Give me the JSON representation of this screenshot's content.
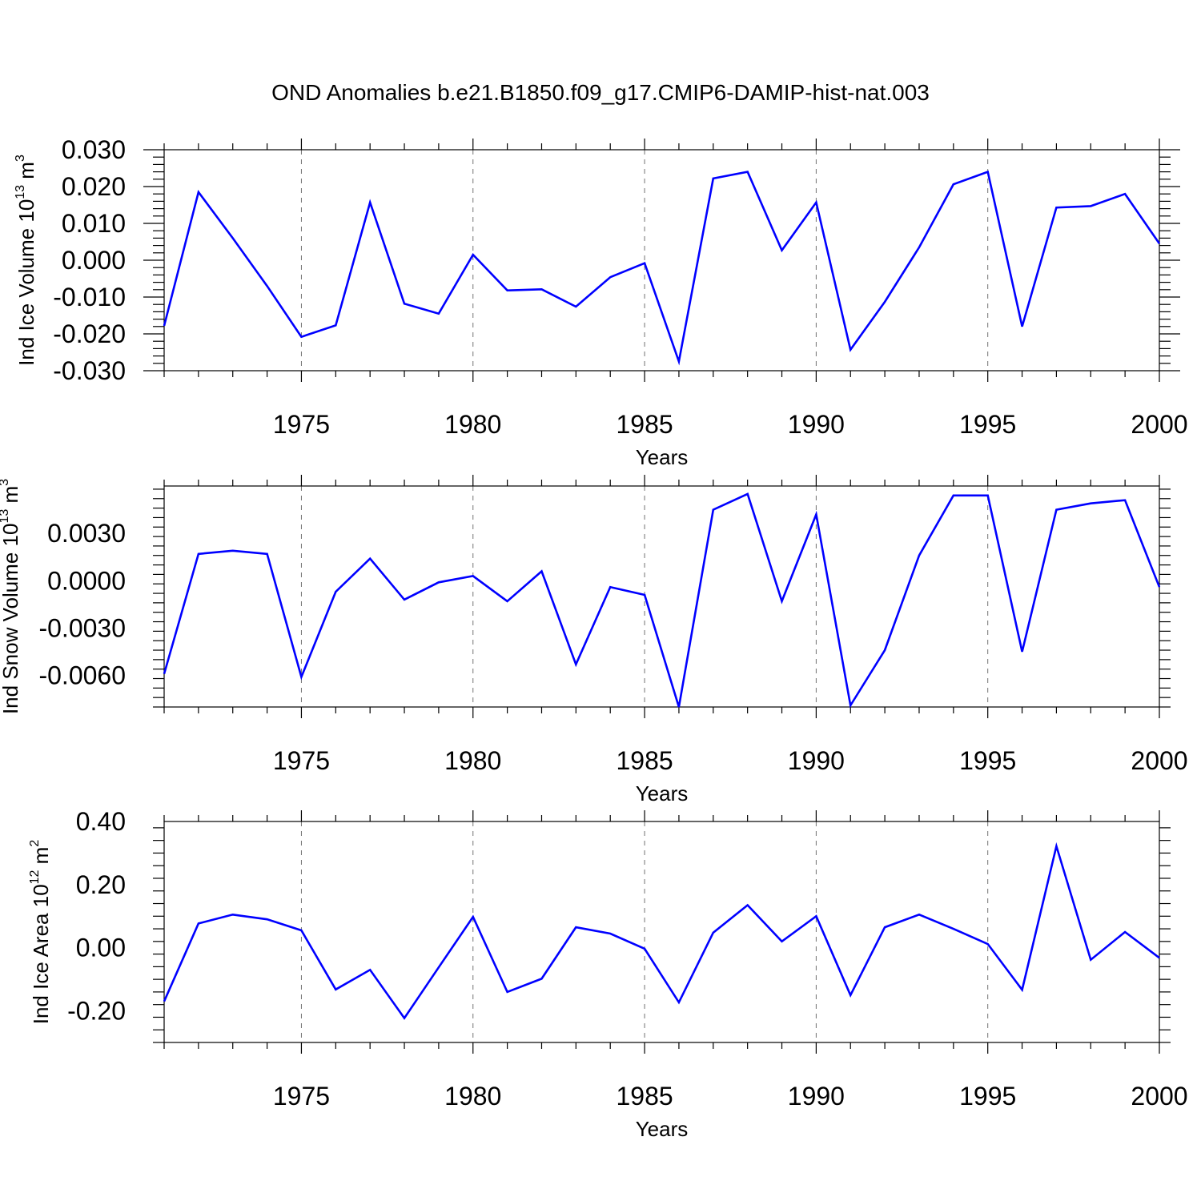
{
  "title": "OND Anomalies b.e21.B1850.f09_g17.CMIP6-DAMIP-hist-nat.003",
  "line_color": "#0000ff",
  "chart_data": [
    {
      "type": "line",
      "ylabel": "Ind Ice Volume 10",
      "ylabel_exp": "13",
      "ylabel_unit": " m",
      "ylabel_unit_exp": "3",
      "xlabel": "Years",
      "xlim": [
        1971,
        2000
      ],
      "ylim": [
        -0.03,
        0.03
      ],
      "xticks": [
        1975,
        1980,
        1985,
        1990,
        1995,
        2000
      ],
      "yticks": [
        -0.03,
        -0.02,
        -0.01,
        0.0,
        0.01,
        0.02,
        0.03
      ],
      "ytick_labels": [
        "-0.030",
        "-0.020",
        "-0.010",
        "0.000",
        "0.010",
        "0.020",
        "0.030"
      ],
      "x": [
        1971,
        1972,
        1973,
        1974,
        1975,
        1976,
        1977,
        1978,
        1979,
        1980,
        1981,
        1982,
        1983,
        1984,
        1985,
        1986,
        1987,
        1988,
        1989,
        1990,
        1991,
        1992,
        1993,
        1994,
        1995,
        1996,
        1997,
        1998,
        1999,
        2000
      ],
      "y": [
        -0.0178,
        0.0185,
        0.006,
        -0.007,
        -0.0208,
        -0.0177,
        0.0157,
        -0.0118,
        -0.0145,
        0.0015,
        -0.0082,
        -0.0079,
        -0.0126,
        -0.0046,
        -0.0008,
        -0.0275,
        0.0222,
        0.024,
        0.0027,
        0.0157,
        -0.0243,
        -0.0113,
        0.0035,
        0.0206,
        0.024,
        -0.018,
        0.0143,
        0.0147,
        0.018,
        0.0045
      ]
    },
    {
      "type": "line",
      "ylabel": "Ind Snow Volume 10",
      "ylabel_exp": "13",
      "ylabel_unit": " m",
      "ylabel_unit_exp": "3",
      "xlabel": "Years",
      "xlim": [
        1971,
        2000
      ],
      "ylim": [
        -0.008,
        0.006
      ],
      "xticks": [
        1975,
        1980,
        1985,
        1990,
        1995,
        2000
      ],
      "yticks": [
        -0.006,
        -0.003,
        0.0,
        0.003
      ],
      "ytick_labels": [
        "-0.0060",
        "-0.0030",
        "0.0000",
        "0.0030"
      ],
      "x": [
        1971,
        1972,
        1973,
        1974,
        1975,
        1976,
        1977,
        1978,
        1979,
        1980,
        1981,
        1982,
        1983,
        1984,
        1985,
        1986,
        1987,
        1988,
        1989,
        1990,
        1991,
        1992,
        1993,
        1994,
        1995,
        1996,
        1997,
        1998,
        1999,
        2000
      ],
      "y": [
        -0.0059,
        0.0017,
        0.0019,
        0.0017,
        -0.0061,
        -0.0007,
        0.0014,
        -0.0012,
        -0.0001,
        0.0003,
        -0.0013,
        0.0006,
        -0.0053,
        -0.0004,
        -0.0009,
        -0.008,
        0.0045,
        0.0055,
        -0.0013,
        0.0042,
        -0.0079,
        -0.0044,
        0.0016,
        0.0054,
        0.0054,
        -0.0045,
        0.0045,
        0.0049,
        0.0051,
        -0.0004
      ]
    },
    {
      "type": "line",
      "ylabel": "Ind Ice Area 10",
      "ylabel_exp": "12",
      "ylabel_unit": " m",
      "ylabel_unit_exp": "2",
      "xlabel": "Years",
      "xlim": [
        1971,
        2000
      ],
      "ylim": [
        -0.3,
        0.4
      ],
      "xticks": [
        1975,
        1980,
        1985,
        1990,
        1995,
        2000
      ],
      "yticks": [
        -0.2,
        0.0,
        0.2,
        0.4
      ],
      "ytick_labels": [
        "-0.20",
        "0.00",
        "0.20",
        "0.40"
      ],
      "x": [
        1971,
        1972,
        1973,
        1974,
        1975,
        1976,
        1977,
        1978,
        1979,
        1980,
        1981,
        1982,
        1983,
        1984,
        1985,
        1986,
        1987,
        1988,
        1989,
        1990,
        1991,
        1992,
        1993,
        1994,
        1995,
        1996,
        1997,
        1998,
        1999,
        2000
      ],
      "y": [
        -0.17,
        0.077,
        0.105,
        0.09,
        0.055,
        -0.132,
        -0.07,
        -0.223,
        -0.062,
        0.098,
        -0.14,
        -0.098,
        0.065,
        0.045,
        -0.003,
        -0.173,
        0.048,
        0.135,
        0.02,
        0.1,
        -0.15,
        0.065,
        0.105,
        0.06,
        0.012,
        -0.133,
        0.322,
        -0.038,
        0.05,
        -0.032
      ]
    }
  ]
}
